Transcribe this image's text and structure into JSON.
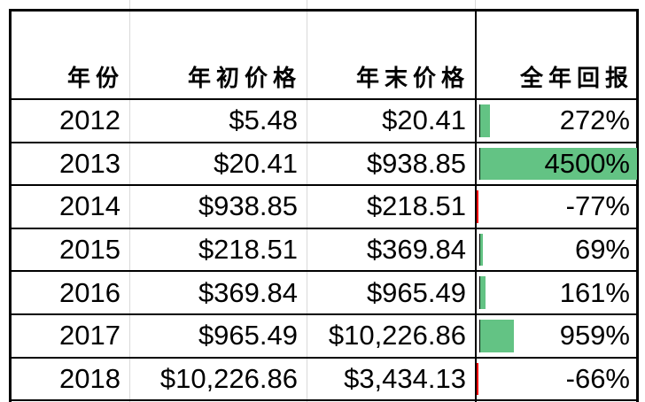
{
  "headers": {
    "year": "年份",
    "start_price": "年初价格",
    "end_price": "年末价格",
    "annual_return": "全年回报"
  },
  "rows": [
    {
      "year": "2012",
      "start": "$5.48",
      "end": "$20.41",
      "ret": "272%",
      "ret_value": 272
    },
    {
      "year": "2013",
      "start": "$20.41",
      "end": "$938.85",
      "ret": "4500%",
      "ret_value": 4500
    },
    {
      "year": "2014",
      "start": "$938.85",
      "end": "$218.51",
      "ret": "-77%",
      "ret_value": -77
    },
    {
      "year": "2015",
      "start": "$218.51",
      "end": "$369.84",
      "ret": "69%",
      "ret_value": 69
    },
    {
      "year": "2016",
      "start": "$369.84",
      "end": "$965.49",
      "ret": "161%",
      "ret_value": 161
    },
    {
      "year": "2017",
      "start": "$965.49",
      "end": "$10,226.86",
      "ret": "959%",
      "ret_value": 959
    },
    {
      "year": "2018",
      "start": "$10,226.86",
      "end": "$3,434.13",
      "ret": "-66%",
      "ret_value": -66
    }
  ],
  "colors": {
    "bar_positive": "#63c384",
    "bar_negative": "#ff0000",
    "grid": "#d9d9d9",
    "border": "#000000"
  }
}
